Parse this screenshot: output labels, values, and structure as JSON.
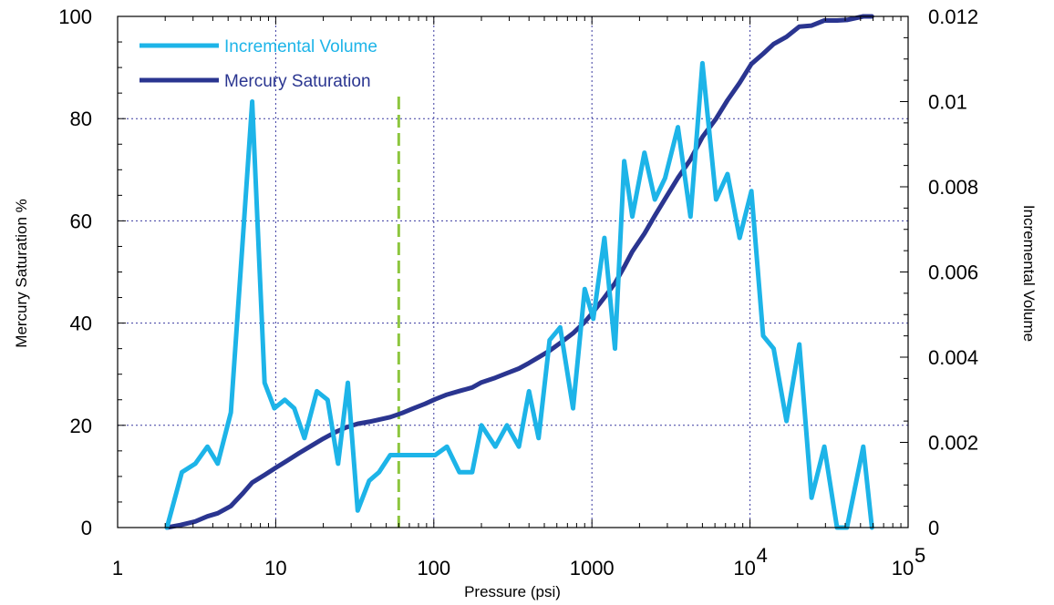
{
  "chart_data": {
    "type": "line",
    "xlabel": "Pressure (psi)",
    "x_scale": "log",
    "xlim": [
      1,
      100000
    ],
    "x_ticks": [
      {
        "value": 1,
        "label": "1"
      },
      {
        "value": 10,
        "label": "10"
      },
      {
        "value": 100,
        "label": "100"
      },
      {
        "value": 1000,
        "label": "1000"
      },
      {
        "value": 10000,
        "label": "10",
        "exp": "4"
      },
      {
        "value": 100000,
        "label": "10",
        "exp": "5"
      }
    ],
    "y_left": {
      "label": "Mercury Saturation %",
      "lim": [
        0,
        100
      ],
      "ticks": [
        "0",
        "20",
        "40",
        "60",
        "80",
        "100"
      ]
    },
    "y_right": {
      "label": "Incremental Volume",
      "lim": [
        0,
        0.012
      ],
      "ticks": [
        "0",
        "0.002",
        "0.004",
        "0.006",
        "0.008",
        "0.01",
        "0.012"
      ]
    },
    "grid": true,
    "legend_position": "top-left",
    "marker_line": {
      "x": 60,
      "color": "#8dc63f",
      "style": "dashed"
    },
    "series": [
      {
        "name": "Incremental Volume",
        "axis": "right",
        "color": "#1db4e8",
        "x": [
          2.05,
          2.55,
          3.1,
          3.7,
          4.3,
          5.2,
          6.2,
          7.1,
          8.5,
          9.8,
          11.4,
          13.1,
          15.2,
          18.2,
          21.3,
          24.8,
          28.6,
          33,
          39,
          45,
          53,
          63,
          74,
          88,
          102,
          121,
          145,
          175,
          200,
          245,
          290,
          345,
          400,
          460,
          540,
          630,
          760,
          900,
          1020,
          1200,
          1400,
          1600,
          1800,
          2150,
          2500,
          2900,
          3500,
          4200,
          5000,
          6100,
          7200,
          8600,
          10200,
          12100,
          14100,
          17000,
          20500,
          24500,
          29500,
          35500,
          41000,
          52000,
          59000
        ],
        "values": [
          0.0,
          0.0013,
          0.0015,
          0.0019,
          0.0015,
          0.0027,
          0.0068,
          0.01,
          0.0034,
          0.0028,
          0.003,
          0.0028,
          0.0021,
          0.0032,
          0.003,
          0.0015,
          0.0034,
          0.0004,
          0.0011,
          0.0013,
          0.0017,
          0.0017,
          0.0017,
          0.0017,
          0.0017,
          0.0019,
          0.0013,
          0.0013,
          0.0024,
          0.0019,
          0.0024,
          0.0019,
          0.0032,
          0.0021,
          0.0044,
          0.0047,
          0.0028,
          0.0056,
          0.0049,
          0.0068,
          0.0042,
          0.0086,
          0.0073,
          0.0088,
          0.0077,
          0.0082,
          0.0094,
          0.0073,
          0.0109,
          0.0077,
          0.0083,
          0.0068,
          0.0079,
          0.0045,
          0.0042,
          0.0025,
          0.0043,
          0.0007,
          0.0019,
          0.0,
          0.0,
          0.0019,
          0.0
        ]
      },
      {
        "name": "Mercury Saturation",
        "axis": "left",
        "color": "#2a3590",
        "x": [
          2.05,
          2.5,
          3.1,
          3.7,
          4.3,
          5.2,
          6.2,
          7.1,
          8.5,
          10,
          12,
          14.1,
          17,
          20,
          24,
          28,
          33,
          39,
          45,
          53,
          63,
          74,
          88,
          102,
          121,
          145,
          175,
          200,
          245,
          290,
          345,
          400,
          460,
          540,
          630,
          760,
          900,
          1020,
          1200,
          1400,
          1600,
          1800,
          2150,
          2500,
          2900,
          3500,
          4200,
          5000,
          6100,
          7200,
          8600,
          10200,
          12100,
          14100,
          17000,
          20500,
          24500,
          29500,
          35500,
          41000,
          52000,
          59000
        ],
        "values": [
          0,
          0.5,
          1.2,
          2.2,
          2.8,
          4.2,
          6.7,
          8.8,
          10.3,
          11.7,
          13.2,
          14.6,
          16.1,
          17.4,
          18.7,
          19.6,
          20.3,
          20.7,
          21.1,
          21.6,
          22.4,
          23.3,
          24.2,
          25.1,
          26.0,
          26.7,
          27.4,
          28.4,
          29.3,
          30.2,
          31.1,
          32.2,
          33.3,
          34.6,
          36.1,
          38.0,
          40.2,
          42.2,
          45.0,
          47.8,
          51.0,
          54.0,
          57.5,
          61.0,
          64.3,
          68.4,
          72.0,
          76.4,
          80.0,
          83.6,
          87.0,
          90.7,
          92.7,
          94.6,
          96.0,
          98.0,
          98.2,
          99.2,
          99.2,
          99.3,
          100.0,
          100.0
        ]
      }
    ]
  }
}
